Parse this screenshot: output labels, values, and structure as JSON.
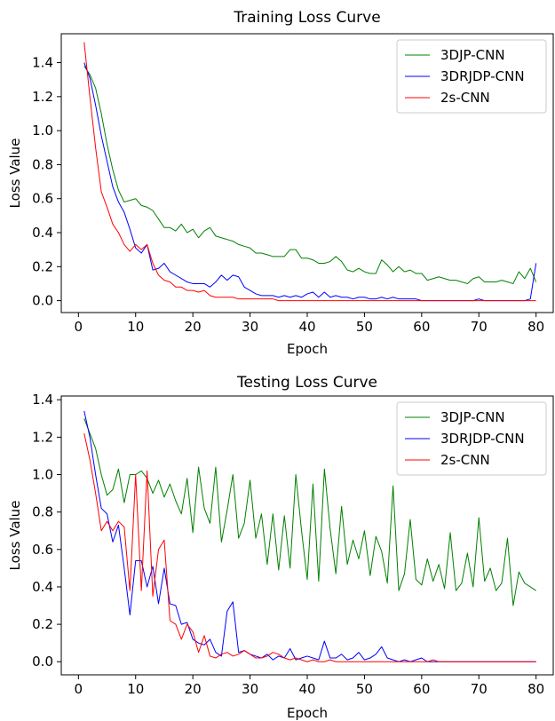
{
  "chart_data": [
    {
      "type": "line",
      "title": "Training Loss Curve",
      "xlabel": "Epoch",
      "ylabel": "Loss Value",
      "xlim": [
        -3,
        83
      ],
      "ylim": [
        -0.07,
        1.57
      ],
      "xticks": [
        0,
        10,
        20,
        30,
        40,
        50,
        60,
        70,
        80
      ],
      "yticks": [
        0.0,
        0.2,
        0.4,
        0.6,
        0.8,
        1.0,
        1.2,
        1.4
      ],
      "ytick_decimals": 1,
      "legend_position": "top-right",
      "series": [
        {
          "name": "3DJP-CNN",
          "color": "#008000",
          "x_start": 1,
          "values": [
            1.38,
            1.33,
            1.25,
            1.1,
            0.92,
            0.77,
            0.65,
            0.58,
            0.59,
            0.6,
            0.56,
            0.55,
            0.53,
            0.48,
            0.43,
            0.43,
            0.41,
            0.45,
            0.4,
            0.42,
            0.37,
            0.41,
            0.43,
            0.38,
            0.37,
            0.36,
            0.35,
            0.33,
            0.32,
            0.31,
            0.28,
            0.28,
            0.27,
            0.26,
            0.26,
            0.26,
            0.3,
            0.3,
            0.25,
            0.25,
            0.24,
            0.22,
            0.22,
            0.23,
            0.26,
            0.23,
            0.18,
            0.17,
            0.19,
            0.17,
            0.16,
            0.16,
            0.24,
            0.21,
            0.17,
            0.2,
            0.17,
            0.18,
            0.16,
            0.16,
            0.12,
            0.13,
            0.14,
            0.13,
            0.12,
            0.12,
            0.11,
            0.1,
            0.13,
            0.14,
            0.11,
            0.11,
            0.11,
            0.12,
            0.11,
            0.1,
            0.17,
            0.13,
            0.19,
            0.11
          ]
        },
        {
          "name": "3DRJDP-CNN",
          "color": "#0000ff",
          "x_start": 1,
          "values": [
            1.4,
            1.31,
            1.15,
            0.97,
            0.82,
            0.67,
            0.58,
            0.52,
            0.42,
            0.31,
            0.28,
            0.33,
            0.18,
            0.19,
            0.22,
            0.17,
            0.15,
            0.13,
            0.11,
            0.1,
            0.1,
            0.1,
            0.08,
            0.11,
            0.15,
            0.12,
            0.15,
            0.14,
            0.08,
            0.06,
            0.04,
            0.03,
            0.03,
            0.03,
            0.02,
            0.03,
            0.02,
            0.03,
            0.02,
            0.04,
            0.05,
            0.02,
            0.05,
            0.02,
            0.03,
            0.02,
            0.02,
            0.01,
            0.02,
            0.02,
            0.01,
            0.01,
            0.02,
            0.01,
            0.02,
            0.01,
            0.01,
            0.01,
            0.01,
            0.0,
            0.0,
            0.0,
            0.0,
            0.0,
            0.0,
            0.0,
            0.0,
            0.0,
            0.0,
            0.01,
            0.0,
            0.0,
            0.0,
            0.0,
            0.0,
            0.0,
            0.0,
            0.0,
            0.01,
            0.22
          ]
        },
        {
          "name": "2s-CNN",
          "color": "#ff0000",
          "x_start": 1,
          "values": [
            1.52,
            1.2,
            0.9,
            0.64,
            0.55,
            0.45,
            0.4,
            0.33,
            0.29,
            0.33,
            0.3,
            0.33,
            0.22,
            0.15,
            0.12,
            0.11,
            0.08,
            0.08,
            0.06,
            0.06,
            0.05,
            0.06,
            0.03,
            0.02,
            0.02,
            0.02,
            0.02,
            0.01,
            0.01,
            0.01,
            0.01,
            0.01,
            0.01,
            0.01,
            0.0,
            0.0,
            0.0,
            0.0,
            0.0,
            0.0,
            0.0,
            0.0,
            0.0,
            0.0,
            0.0,
            0.0,
            0.0,
            0.0,
            0.0,
            0.0,
            0.0,
            0.0,
            0.0,
            0.0,
            0.0,
            0.0,
            0.0,
            0.0,
            0.0,
            0.0,
            0.0,
            0.0,
            0.0,
            0.0,
            0.0,
            0.0,
            0.0,
            0.0,
            0.0,
            0.0,
            0.0,
            0.0,
            0.0,
            0.0,
            0.0,
            0.0,
            0.0,
            0.0,
            0.0,
            0.0
          ]
        }
      ]
    },
    {
      "type": "line",
      "title": "Testing Loss Curve",
      "xlabel": "Epoch",
      "ylabel": "Loss Value",
      "xlim": [
        -3,
        83
      ],
      "ylim": [
        -0.07,
        1.42
      ],
      "xticks": [
        0,
        10,
        20,
        30,
        40,
        50,
        60,
        70,
        80
      ],
      "yticks": [
        0.0,
        0.2,
        0.4,
        0.6,
        0.8,
        1.0,
        1.2,
        1.4
      ],
      "ytick_decimals": 1,
      "legend_position": "top-right",
      "series": [
        {
          "name": "3DJP-CNN",
          "color": "#008000",
          "x_start": 1,
          "values": [
            1.3,
            1.22,
            1.14,
            1.0,
            0.89,
            0.92,
            1.03,
            0.85,
            1.0,
            1.0,
            1.02,
            0.98,
            0.9,
            0.97,
            0.88,
            0.95,
            0.86,
            0.79,
            0.98,
            0.69,
            1.04,
            0.82,
            0.74,
            1.04,
            0.64,
            0.81,
            1.0,
            0.66,
            0.74,
            0.97,
            0.66,
            0.79,
            0.52,
            0.79,
            0.49,
            0.78,
            0.5,
            1.0,
            0.7,
            0.44,
            0.95,
            0.43,
            1.03,
            0.71,
            0.47,
            0.83,
            0.52,
            0.65,
            0.55,
            0.7,
            0.46,
            0.67,
            0.59,
            0.42,
            0.94,
            0.38,
            0.47,
            0.76,
            0.44,
            0.41,
            0.55,
            0.43,
            0.52,
            0.39,
            0.69,
            0.38,
            0.42,
            0.58,
            0.4,
            0.77,
            0.43,
            0.5,
            0.38,
            0.42,
            0.66,
            0.3,
            0.48,
            0.42,
            0.4,
            0.38
          ]
        },
        {
          "name": "3DRJDP-CNN",
          "color": "#0000ff",
          "x_start": 1,
          "values": [
            1.34,
            1.2,
            1.0,
            0.82,
            0.79,
            0.64,
            0.73,
            0.5,
            0.25,
            0.54,
            0.54,
            0.4,
            0.51,
            0.31,
            0.5,
            0.31,
            0.3,
            0.2,
            0.21,
            0.12,
            0.1,
            0.09,
            0.12,
            0.05,
            0.03,
            0.27,
            0.32,
            0.05,
            0.06,
            0.04,
            0.03,
            0.02,
            0.04,
            0.01,
            0.03,
            0.02,
            0.07,
            0.01,
            0.02,
            0.03,
            0.02,
            0.01,
            0.11,
            0.02,
            0.02,
            0.04,
            0.01,
            0.02,
            0.05,
            0.01,
            0.02,
            0.04,
            0.08,
            0.02,
            0.01,
            0.0,
            0.01,
            0.0,
            0.01,
            0.02,
            0.0,
            0.0,
            0.0,
            0.0,
            0.0,
            0.0,
            0.0,
            0.0,
            0.0,
            0.0,
            0.0,
            0.0,
            0.0,
            0.0,
            0.0,
            0.0,
            0.0,
            0.0,
            0.0,
            0.0
          ]
        },
        {
          "name": "2s-CNN",
          "color": "#ff0000",
          "x_start": 1,
          "values": [
            1.22,
            1.08,
            0.9,
            0.7,
            0.75,
            0.7,
            0.75,
            0.72,
            0.38,
            1.0,
            0.38,
            1.02,
            0.35,
            0.6,
            0.65,
            0.22,
            0.2,
            0.12,
            0.2,
            0.16,
            0.05,
            0.14,
            0.03,
            0.02,
            0.04,
            0.05,
            0.03,
            0.04,
            0.06,
            0.04,
            0.02,
            0.02,
            0.03,
            0.05,
            0.04,
            0.02,
            0.01,
            0.02,
            0.01,
            0.0,
            0.01,
            0.0,
            0.0,
            0.01,
            0.0,
            0.0,
            0.0,
            0.0,
            0.0,
            0.0,
            0.0,
            0.0,
            0.0,
            0.0,
            0.0,
            0.0,
            0.0,
            0.0,
            0.0,
            0.0,
            0.0,
            0.01,
            0.0,
            0.0,
            0.0,
            0.0,
            0.0,
            0.0,
            0.0,
            0.0,
            0.0,
            0.0,
            0.0,
            0.0,
            0.0,
            0.0,
            0.0,
            0.0,
            0.0,
            0.0
          ]
        }
      ]
    }
  ]
}
